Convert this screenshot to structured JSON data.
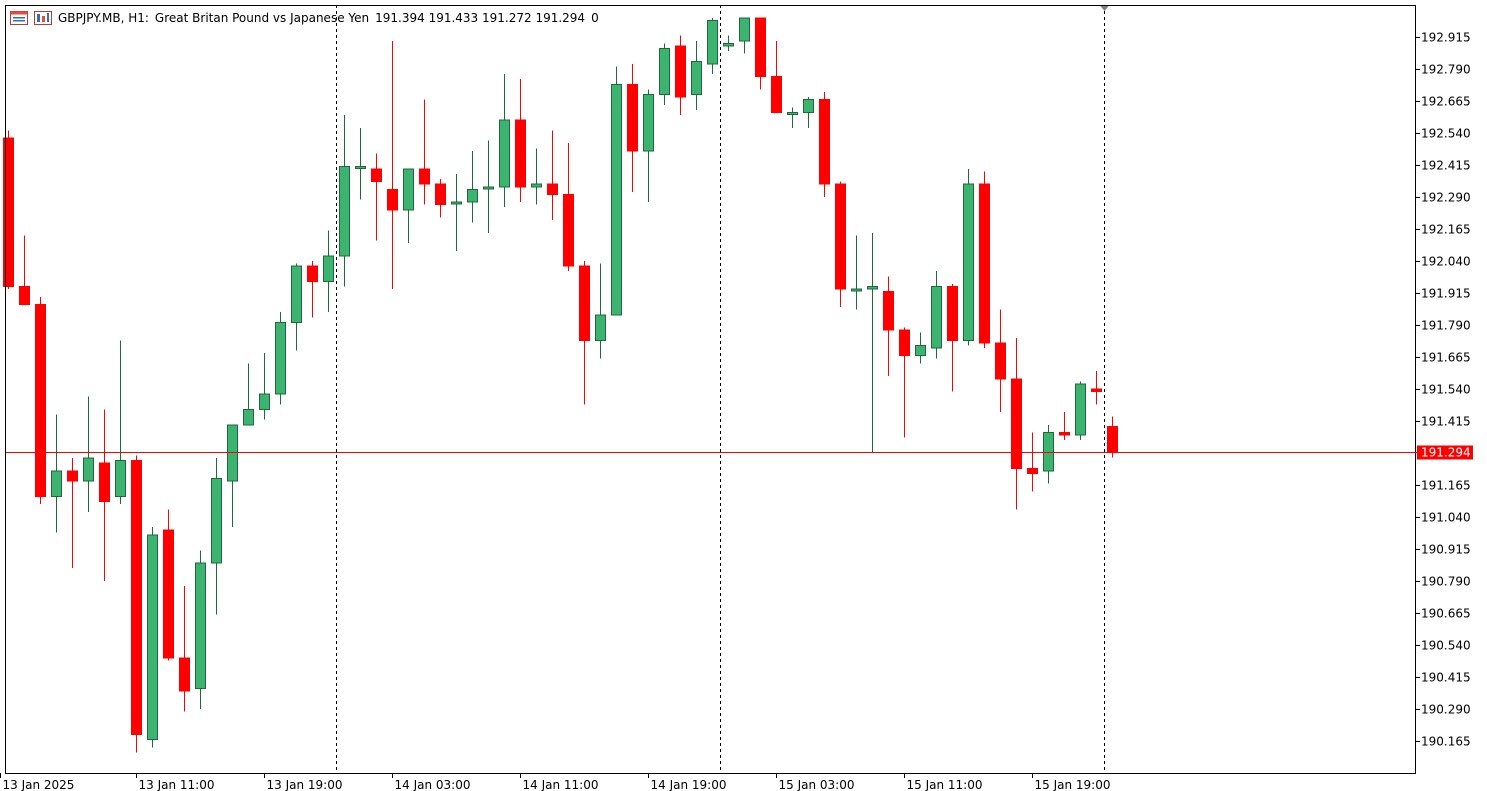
{
  "header": {
    "symbol": "GBPJPY.MB, H1:",
    "description": "Great Britan Pound vs Japanese Yen",
    "ohlc": "191.394 191.433 191.272 191.294",
    "spread": "0"
  },
  "icons": {
    "chart_window": "chart-window-icon",
    "trade_panel": "one-click-trading-icon"
  },
  "colors": {
    "bull": "#3cb371",
    "bear": "#ff0000",
    "bid_line": "#ff0000",
    "price_tag_bg": "#ff0000",
    "price_tag_text": "#ffffff",
    "frame": "#000000",
    "separator": "#000000"
  },
  "chart_data": {
    "type": "candlestick",
    "title": "GBPJPY.MB, H1",
    "ylim": [
      190.06,
      193.0
    ],
    "y_ticks": [
      "192.915",
      "192.790",
      "192.665",
      "192.540",
      "192.415",
      "192.290",
      "192.165",
      "192.040",
      "191.915",
      "191.790",
      "191.665",
      "191.540",
      "191.415",
      "191.294",
      "191.165",
      "191.040",
      "190.915",
      "190.790",
      "190.665",
      "190.540",
      "190.415",
      "190.290",
      "190.165"
    ],
    "x_ticks": [
      {
        "label": "13 Jan 2025",
        "bar": -0.5
      },
      {
        "label": "13 Jan 11:00",
        "bar": 8
      },
      {
        "label": "13 Jan 19:00",
        "bar": 16
      },
      {
        "label": "14 Jan 03:00",
        "bar": 24
      },
      {
        "label": "14 Jan 11:00",
        "bar": 32
      },
      {
        "label": "14 Jan 19:00",
        "bar": 40
      },
      {
        "label": "15 Jan 03:00",
        "bar": 48
      },
      {
        "label": "15 Jan 11:00",
        "bar": 56
      },
      {
        "label": "15 Jan 19:00",
        "bar": 64
      }
    ],
    "day_separators": [
      20.5,
      44.5,
      68.5
    ],
    "bid_price": "191.294",
    "bid_value": 191.294,
    "candles": [
      {
        "o": 192.52,
        "h": 192.55,
        "l": 191.93,
        "c": 191.94
      },
      {
        "o": 191.94,
        "h": 192.14,
        "l": 191.87,
        "c": 191.87
      },
      {
        "o": 191.87,
        "h": 191.9,
        "l": 191.09,
        "c": 191.12
      },
      {
        "o": 191.12,
        "h": 191.44,
        "l": 190.98,
        "c": 191.22
      },
      {
        "o": 191.22,
        "h": 191.27,
        "l": 190.84,
        "c": 191.18
      },
      {
        "o": 191.18,
        "h": 191.51,
        "l": 191.06,
        "c": 191.27
      },
      {
        "o": 191.25,
        "h": 191.46,
        "l": 190.79,
        "c": 191.1
      },
      {
        "o": 191.12,
        "h": 191.73,
        "l": 191.09,
        "c": 191.26
      },
      {
        "o": 191.26,
        "h": 191.28,
        "l": 190.12,
        "c": 190.19
      },
      {
        "o": 190.17,
        "h": 191.0,
        "l": 190.14,
        "c": 190.97
      },
      {
        "o": 190.99,
        "h": 191.07,
        "l": 190.48,
        "c": 190.49
      },
      {
        "o": 190.49,
        "h": 190.77,
        "l": 190.28,
        "c": 190.36
      },
      {
        "o": 190.37,
        "h": 190.91,
        "l": 190.29,
        "c": 190.86
      },
      {
        "o": 190.86,
        "h": 191.27,
        "l": 190.66,
        "c": 191.19
      },
      {
        "o": 191.18,
        "h": 191.4,
        "l": 191.0,
        "c": 191.4
      },
      {
        "o": 191.4,
        "h": 191.64,
        "l": 191.4,
        "c": 191.46
      },
      {
        "o": 191.46,
        "h": 191.68,
        "l": 191.42,
        "c": 191.52
      },
      {
        "o": 191.52,
        "h": 191.84,
        "l": 191.48,
        "c": 191.8
      },
      {
        "o": 191.8,
        "h": 192.03,
        "l": 191.69,
        "c": 192.02
      },
      {
        "o": 192.02,
        "h": 192.04,
        "l": 191.82,
        "c": 191.96
      },
      {
        "o": 191.96,
        "h": 192.16,
        "l": 191.84,
        "c": 192.06
      },
      {
        "o": 192.06,
        "h": 192.61,
        "l": 191.94,
        "c": 192.41
      },
      {
        "o": 192.41,
        "h": 192.56,
        "l": 192.28,
        "c": 192.41
      },
      {
        "o": 192.4,
        "h": 192.46,
        "l": 192.12,
        "c": 192.35
      },
      {
        "o": 192.32,
        "h": 192.9,
        "l": 191.93,
        "c": 192.24
      },
      {
        "o": 192.24,
        "h": 192.4,
        "l": 192.11,
        "c": 192.4
      },
      {
        "o": 192.4,
        "h": 192.67,
        "l": 192.26,
        "c": 192.34
      },
      {
        "o": 192.34,
        "h": 192.36,
        "l": 192.21,
        "c": 192.26
      },
      {
        "o": 192.27,
        "h": 192.38,
        "l": 192.08,
        "c": 192.27
      },
      {
        "o": 192.27,
        "h": 192.47,
        "l": 192.19,
        "c": 192.32
      },
      {
        "o": 192.33,
        "h": 192.51,
        "l": 192.15,
        "c": 192.33
      },
      {
        "o": 192.33,
        "h": 192.77,
        "l": 192.25,
        "c": 192.59
      },
      {
        "o": 192.59,
        "h": 192.75,
        "l": 192.27,
        "c": 192.33
      },
      {
        "o": 192.33,
        "h": 192.48,
        "l": 192.26,
        "c": 192.34
      },
      {
        "o": 192.34,
        "h": 192.55,
        "l": 192.2,
        "c": 192.3
      },
      {
        "o": 192.3,
        "h": 192.5,
        "l": 192.0,
        "c": 192.02
      },
      {
        "o": 192.02,
        "h": 192.04,
        "l": 191.48,
        "c": 191.73
      },
      {
        "o": 191.73,
        "h": 192.03,
        "l": 191.66,
        "c": 191.83
      },
      {
        "o": 191.83,
        "h": 192.8,
        "l": 191.83,
        "c": 192.73
      },
      {
        "o": 192.73,
        "h": 192.81,
        "l": 192.31,
        "c": 192.47
      },
      {
        "o": 192.47,
        "h": 192.71,
        "l": 192.27,
        "c": 192.69
      },
      {
        "o": 192.69,
        "h": 192.89,
        "l": 192.65,
        "c": 192.87
      },
      {
        "o": 192.88,
        "h": 192.92,
        "l": 192.61,
        "c": 192.68
      },
      {
        "o": 192.69,
        "h": 192.9,
        "l": 192.63,
        "c": 192.82
      },
      {
        "o": 192.81,
        "h": 192.99,
        "l": 192.77,
        "c": 192.98
      },
      {
        "o": 192.88,
        "h": 192.92,
        "l": 192.86,
        "c": 192.89
      },
      {
        "o": 192.9,
        "h": 192.97,
        "l": 192.85,
        "c": 192.99
      },
      {
        "o": 192.99,
        "h": 192.99,
        "l": 192.71,
        "c": 192.76
      },
      {
        "o": 192.76,
        "h": 192.9,
        "l": 192.62,
        "c": 192.62
      },
      {
        "o": 192.62,
        "h": 192.64,
        "l": 192.56,
        "c": 192.62
      },
      {
        "o": 192.62,
        "h": 192.68,
        "l": 192.56,
        "c": 192.67
      },
      {
        "o": 192.67,
        "h": 192.7,
        "l": 192.29,
        "c": 192.34
      },
      {
        "o": 192.34,
        "h": 192.35,
        "l": 191.86,
        "c": 191.93
      },
      {
        "o": 191.93,
        "h": 192.14,
        "l": 191.85,
        "c": 191.93
      },
      {
        "o": 191.93,
        "h": 192.15,
        "l": 191.29,
        "c": 191.94
      },
      {
        "o": 191.92,
        "h": 191.98,
        "l": 191.59,
        "c": 191.77
      },
      {
        "o": 191.77,
        "h": 191.78,
        "l": 191.35,
        "c": 191.67
      },
      {
        "o": 191.67,
        "h": 191.76,
        "l": 191.64,
        "c": 191.71
      },
      {
        "o": 191.7,
        "h": 192.0,
        "l": 191.66,
        "c": 191.94
      },
      {
        "o": 191.94,
        "h": 191.95,
        "l": 191.53,
        "c": 191.73
      },
      {
        "o": 191.73,
        "h": 192.4,
        "l": 191.71,
        "c": 192.34
      },
      {
        "o": 192.34,
        "h": 192.39,
        "l": 191.7,
        "c": 191.72
      },
      {
        "o": 191.72,
        "h": 191.85,
        "l": 191.45,
        "c": 191.58
      },
      {
        "o": 191.58,
        "h": 191.74,
        "l": 191.07,
        "c": 191.23
      },
      {
        "o": 191.23,
        "h": 191.37,
        "l": 191.14,
        "c": 191.21
      },
      {
        "o": 191.22,
        "h": 191.4,
        "l": 191.17,
        "c": 191.37
      },
      {
        "o": 191.37,
        "h": 191.45,
        "l": 191.34,
        "c": 191.36
      },
      {
        "o": 191.36,
        "h": 191.57,
        "l": 191.34,
        "c": 191.56
      },
      {
        "o": 191.54,
        "h": 191.61,
        "l": 191.48,
        "c": 191.53
      },
      {
        "o": 191.394,
        "h": 191.433,
        "l": 191.272,
        "c": 191.294
      }
    ]
  }
}
